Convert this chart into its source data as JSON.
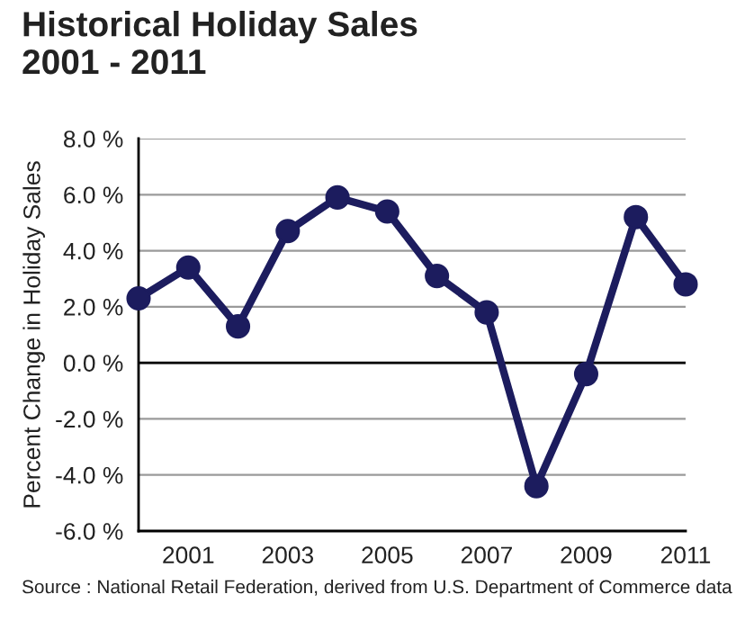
{
  "chart_data": {
    "type": "line",
    "title": "Historical Holiday Sales\n2001 - 2011",
    "ylabel": "Percent Change in Holiday Sales",
    "x": [
      2000,
      2001,
      2002,
      2003,
      2004,
      2005,
      2006,
      2007,
      2008,
      2009,
      2010,
      2011
    ],
    "series": [
      {
        "color": "#1c1c5e",
        "values": [
          2.3,
          3.4,
          1.3,
          4.7,
          5.9,
          5.4,
          3.1,
          1.8,
          -4.4,
          -0.4,
          5.2,
          2.8
        ]
      }
    ],
    "xlim": [
      2000,
      2011
    ],
    "xticks": [
      2001,
      2003,
      2005,
      2007,
      2009,
      2011
    ],
    "ylim": [
      -6,
      8
    ],
    "yticks": [
      {
        "value": -6,
        "label": "-6.0 %"
      },
      {
        "value": -4,
        "label": "-4.0 %"
      },
      {
        "value": -2,
        "label": "-2.0 %"
      },
      {
        "value": 0,
        "label": "0.0 %"
      },
      {
        "value": 2,
        "label": "2.0 %"
      },
      {
        "value": 4,
        "label": "4.0 %"
      },
      {
        "value": 6,
        "label": "6.0 %"
      },
      {
        "value": 8,
        "label": "8.0 %"
      }
    ],
    "ref_lines": [
      {
        "axis": "y",
        "value": 0,
        "color": "#000000"
      }
    ],
    "grid": "y",
    "marker": "circle",
    "line_style": "solid",
    "annotations": [
      "Source : National Retail Federation, derived from U.S. Department of Commerce data"
    ]
  }
}
